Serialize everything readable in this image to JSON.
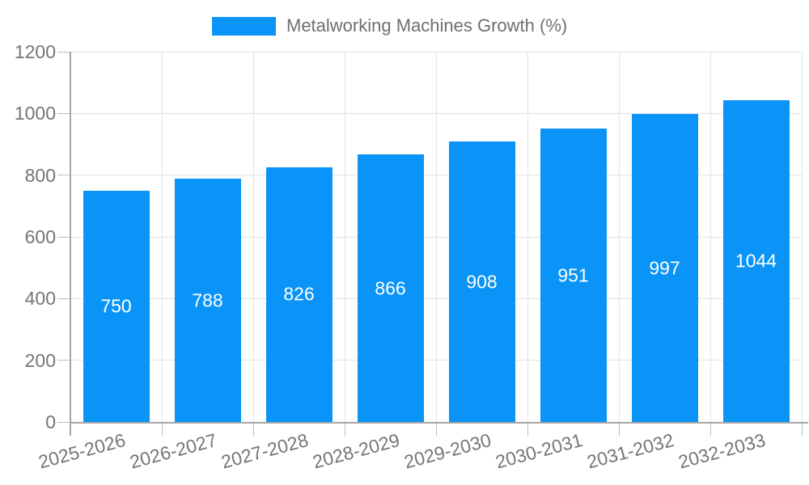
{
  "chart_data": {
    "type": "bar",
    "title": "",
    "series_name": "Metalworking Machines Growth (%)",
    "legend_position": "top",
    "categories": [
      "2025-2026",
      "2026-2027",
      "2027-2028",
      "2028-2029",
      "2029-2030",
      "2030-2031",
      "2031-2032",
      "2032-2033"
    ],
    "values": [
      750,
      788,
      826,
      866,
      908,
      951,
      997,
      1044
    ],
    "bar_labels": [
      "750",
      "788",
      "826",
      "866",
      "908",
      "951",
      "997",
      "1044"
    ],
    "ylim": [
      0,
      1200
    ],
    "yticks": [
      0,
      200,
      400,
      600,
      800,
      1000,
      1200
    ],
    "grid": true,
    "colors": {
      "bar": "#0a94f8",
      "bar_value_text": "#ffffff",
      "axis_text": "#757575",
      "legend_text": "#6f6f6f",
      "gridline": "#e2e2e2",
      "axis_line": "#a6a6a6",
      "tick_mark": "#bdbdbd"
    }
  }
}
